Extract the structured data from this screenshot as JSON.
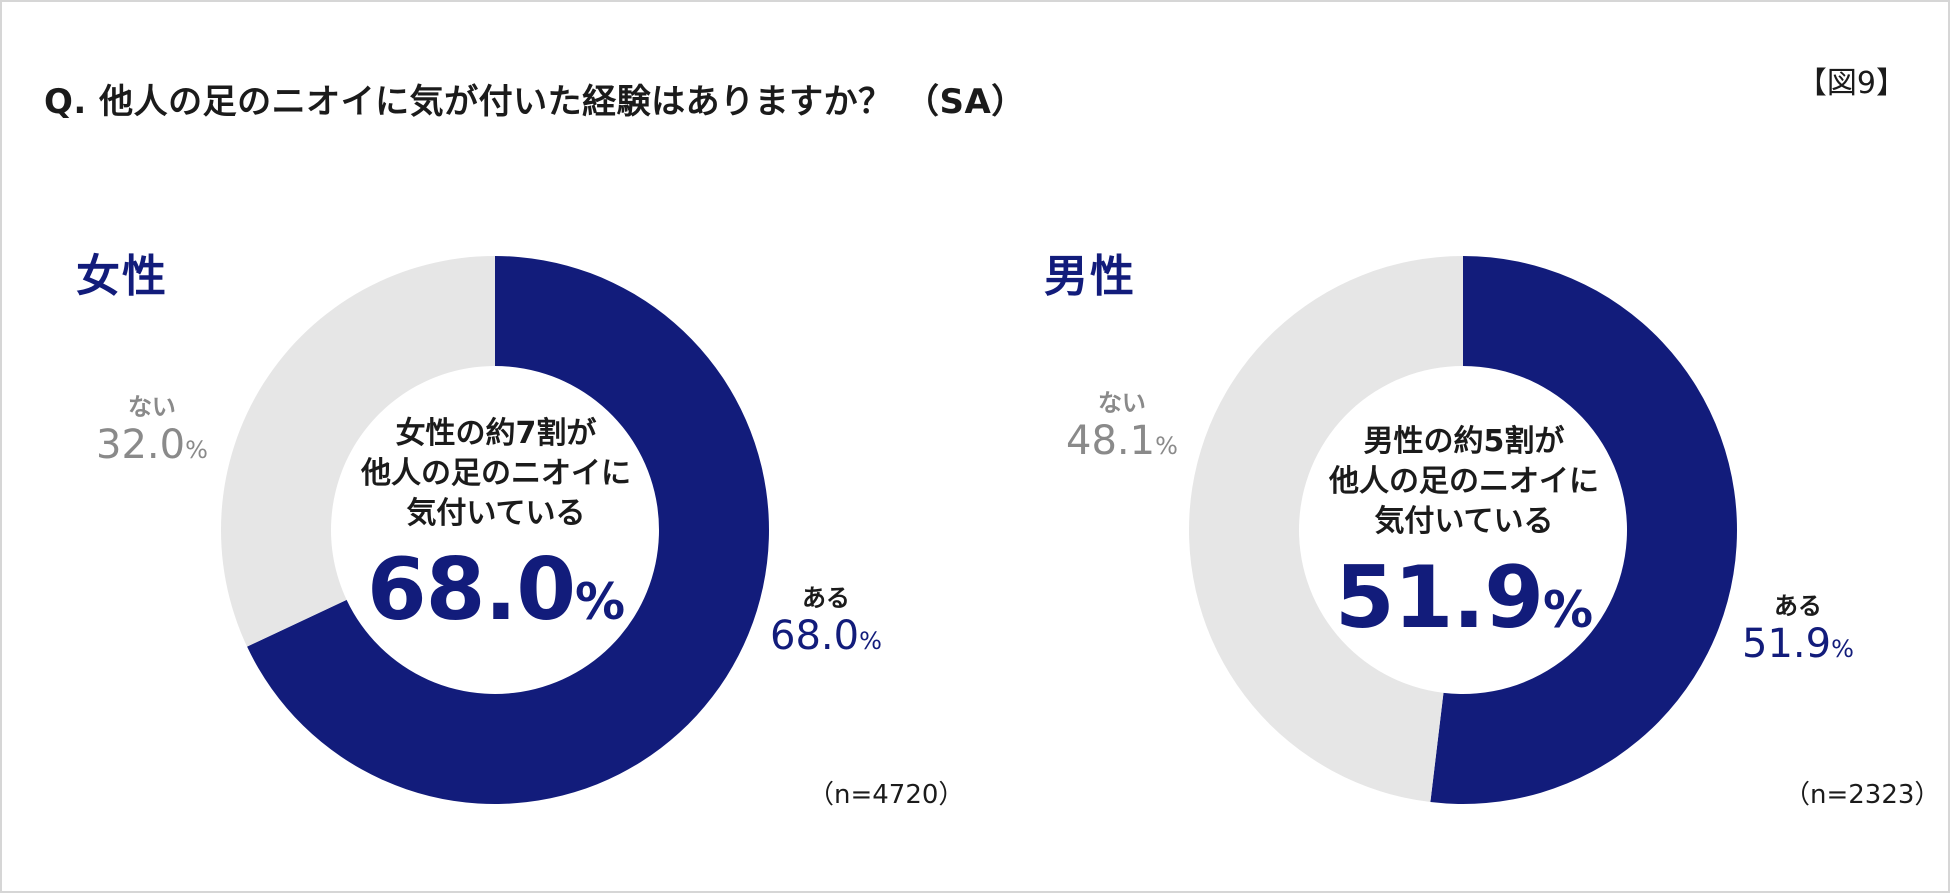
{
  "question": "Q. 他人の足のニオイに気が付いた経験はありますか？ （SA）",
  "figure_label": "【図9】",
  "colors": {
    "yes": "#121c7b",
    "no": "#e6e6e6",
    "no_text": "#8a8a8a"
  },
  "chart_data": [
    {
      "type": "pie",
      "title": "女性",
      "slices": [
        {
          "label": "ある",
          "value": 68.0
        },
        {
          "label": "ない",
          "value": 32.0
        }
      ],
      "center_text": [
        "女性の約7割が",
        "他人の足のニオイに",
        "気付いている"
      ],
      "center_value": "68.0",
      "n_label": "（n=4720）",
      "yes_value_text": "68.0",
      "no_value_text": "32.0"
    },
    {
      "type": "pie",
      "title": "男性",
      "slices": [
        {
          "label": "ある",
          "value": 51.9
        },
        {
          "label": "ない",
          "value": 48.1
        }
      ],
      "center_text": [
        "男性の約5割が",
        "他人の足のニオイに",
        "気付いている"
      ],
      "center_value": "51.9",
      "n_label": "（n=2323）",
      "yes_value_text": "51.9",
      "no_value_text": "48.1"
    }
  ],
  "percent_sign": "%"
}
